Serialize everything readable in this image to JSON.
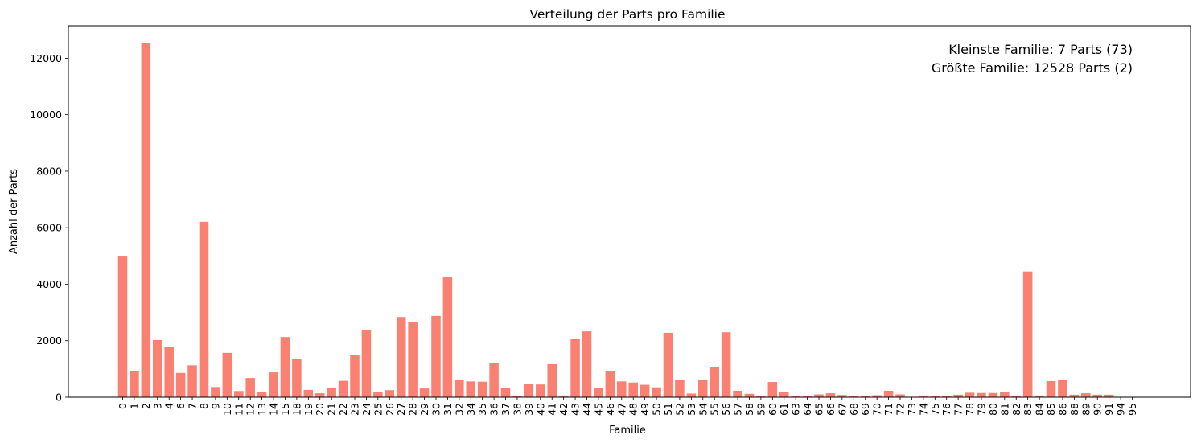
{
  "chart_data": {
    "type": "bar",
    "title": "Verteilung der Parts pro Familie",
    "xlabel": "Familie",
    "ylabel": "Anzahl der Parts",
    "ylim": [
      0,
      13150
    ],
    "yticks": [
      0,
      2000,
      4000,
      6000,
      8000,
      10000,
      12000
    ],
    "bar_color": "#fa8072",
    "grid": false,
    "categories": [
      "0",
      "1",
      "2",
      "3",
      "4",
      "6",
      "7",
      "8",
      "9",
      "10",
      "11",
      "12",
      "13",
      "14",
      "15",
      "18",
      "19",
      "20",
      "21",
      "22",
      "23",
      "24",
      "25",
      "26",
      "27",
      "28",
      "29",
      "30",
      "31",
      "32",
      "34",
      "35",
      "36",
      "37",
      "38",
      "39",
      "40",
      "41",
      "42",
      "43",
      "44",
      "45",
      "46",
      "47",
      "48",
      "49",
      "50",
      "51",
      "52",
      "53",
      "54",
      "55",
      "56",
      "57",
      "58",
      "59",
      "60",
      "61",
      "63",
      "64",
      "65",
      "66",
      "67",
      "68",
      "69",
      "70",
      "71",
      "72",
      "73",
      "74",
      "75",
      "76",
      "77",
      "78",
      "79",
      "80",
      "81",
      "82",
      "83",
      "84",
      "85",
      "86",
      "88",
      "89",
      "90",
      "91",
      "94",
      "95"
    ],
    "values": [
      4980,
      930,
      12528,
      2020,
      1790,
      860,
      1130,
      6210,
      360,
      1570,
      220,
      680,
      170,
      880,
      2130,
      1360,
      260,
      140,
      330,
      580,
      1500,
      2390,
      190,
      250,
      2840,
      2650,
      310,
      2880,
      4240,
      600,
      560,
      550,
      1200,
      320,
      30,
      460,
      450,
      1170,
      60,
      2050,
      2330,
      340,
      930,
      560,
      520,
      440,
      350,
      2280,
      600,
      130,
      600,
      1080,
      2300,
      230,
      120,
      30,
      540,
      200,
      30,
      50,
      100,
      140,
      80,
      40,
      40,
      70,
      230,
      100,
      7,
      60,
      50,
      40,
      90,
      160,
      150,
      150,
      200,
      60,
      4450,
      60,
      570,
      600,
      90,
      140,
      90,
      90,
      15,
      7
    ],
    "annotations": [
      "Kleinste Familie: 7 Parts (73)",
      "Größte Familie: 12528 Parts (2)"
    ]
  }
}
